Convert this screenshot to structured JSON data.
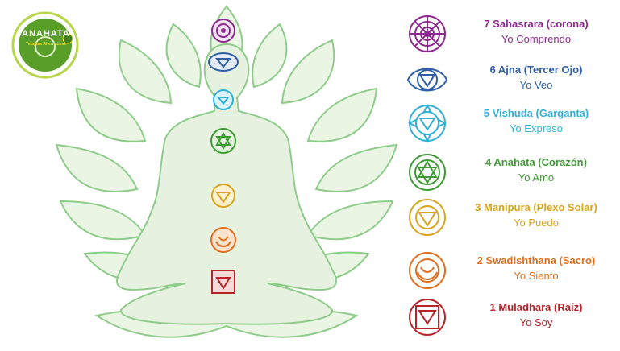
{
  "logo": {
    "name": "ANAHATA",
    "subtitle": "Terapias Alternativas"
  },
  "chakras": [
    {
      "name": "7 Sahasrara (corona)",
      "affirmation": "Yo Comprendo",
      "color": "#8b2a8c",
      "icon": "lotus-crown-icon"
    },
    {
      "name": "6 Ajna (Tercer Ojo)",
      "affirmation": "Yo Veo",
      "color": "#2f5ea6",
      "icon": "third-eye-icon"
    },
    {
      "name": "5 Vishuda (Garganta)",
      "affirmation": "Yo Expreso",
      "color": "#31b0d8",
      "icon": "throat-lotus-icon"
    },
    {
      "name": "4 Anahata (Corazón)",
      "affirmation": "Yo Amo",
      "color": "#3f9a35",
      "icon": "heart-star-icon"
    },
    {
      "name": "3 Manipura (Plexo Solar)",
      "affirmation": "Yo Puedo",
      "color": "#d9a51d",
      "icon": "solar-triangle-icon"
    },
    {
      "name": "2 Swadishthana (Sacro)",
      "affirmation": "Yo Siento",
      "color": "#e0701f",
      "icon": "sacral-moon-icon"
    },
    {
      "name": "1 Muladhara (Raíz)",
      "affirmation": "Yo Soy",
      "color": "#b8232a",
      "icon": "root-square-icon"
    }
  ],
  "colors": {
    "figure_fill": "#e6f2df",
    "figure_stroke": "#8fcc8b",
    "logo_green": "#5a9e2a",
    "logo_ring": "#b7d74a"
  }
}
